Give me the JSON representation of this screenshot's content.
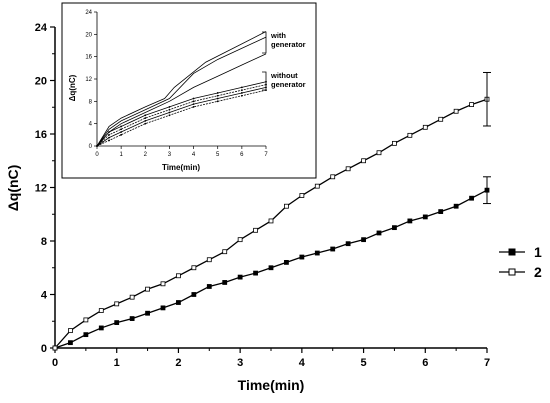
{
  "chart_data": [
    {
      "type": "line",
      "xlabel": "Time(min)",
      "ylabel": "Δq(nC)",
      "xlim": [
        0,
        7
      ],
      "ylim": [
        0,
        24
      ],
      "xticks": [
        "0",
        "1",
        "2",
        "3",
        "4",
        "5",
        "6",
        "7"
      ],
      "yticks": [
        "0",
        "4",
        "8",
        "12",
        "16",
        "20",
        "24"
      ],
      "grid": false,
      "legend_position": "right",
      "series": [
        {
          "name": "1",
          "marker": "filled-square",
          "x": [
            0,
            0.25,
            0.5,
            0.75,
            1.0,
            1.25,
            1.5,
            1.75,
            2.0,
            2.25,
            2.5,
            2.75,
            3.0,
            3.25,
            3.5,
            3.75,
            4.0,
            4.25,
            4.5,
            4.75,
            5.0,
            5.25,
            5.5,
            5.75,
            6.0,
            6.25,
            6.5,
            6.75,
            7.0
          ],
          "y": [
            0,
            0.4,
            1.0,
            1.5,
            1.9,
            2.2,
            2.6,
            3.0,
            3.4,
            4.0,
            4.6,
            4.9,
            5.3,
            5.6,
            6.0,
            6.4,
            6.8,
            7.1,
            7.4,
            7.8,
            8.1,
            8.6,
            9.0,
            9.5,
            9.8,
            10.2,
            10.6,
            11.2,
            11.8
          ],
          "error_bar_last": 1.0
        },
        {
          "name": "2",
          "marker": "open-square",
          "x": [
            0,
            0.25,
            0.5,
            0.75,
            1.0,
            1.25,
            1.5,
            1.75,
            2.0,
            2.25,
            2.5,
            2.75,
            3.0,
            3.25,
            3.5,
            3.75,
            4.0,
            4.25,
            4.5,
            4.75,
            5.0,
            5.25,
            5.5,
            5.75,
            6.0,
            6.25,
            6.5,
            6.75,
            7.0
          ],
          "y": [
            0,
            1.3,
            2.1,
            2.8,
            3.3,
            3.8,
            4.4,
            4.8,
            5.4,
            6.0,
            6.6,
            7.2,
            8.1,
            8.8,
            9.5,
            10.6,
            11.4,
            12.1,
            12.8,
            13.4,
            14.0,
            14.6,
            15.3,
            15.9,
            16.5,
            17.1,
            17.7,
            18.2,
            18.6
          ],
          "error_bar_last": 2.0
        }
      ]
    },
    {
      "type": "line",
      "role": "inset",
      "xlabel": "Time(min)",
      "ylabel": "Δq(nC)",
      "xlim": [
        0,
        7
      ],
      "ylim": [
        0,
        24
      ],
      "xticks": [
        "0",
        "1",
        "2",
        "3",
        "4",
        "5",
        "6",
        "7"
      ],
      "yticks": [
        "0",
        "4",
        "8",
        "12",
        "16",
        "20",
        "24"
      ],
      "annotations": [
        "with",
        "generator",
        "without",
        "generator"
      ],
      "groups": [
        {
          "label": "with generator",
          "series": [
            {
              "x": [
                0,
                0.5,
                1,
                2,
                2.8,
                3.2,
                4.5,
                7
              ],
              "y": [
                0,
                3.5,
                5,
                7,
                8.5,
                10.5,
                15,
                20.5
              ]
            },
            {
              "x": [
                0,
                0.5,
                1,
                2,
                3,
                4,
                5,
                7
              ],
              "y": [
                0,
                3,
                4.5,
                6.5,
                8.5,
                13,
                15.5,
                19.5
              ]
            },
            {
              "x": [
                0,
                0.5,
                1,
                2,
                3,
                4,
                5,
                6,
                7
              ],
              "y": [
                0,
                2.5,
                4,
                6,
                8,
                10.5,
                12.5,
                14.5,
                16.5
              ]
            }
          ]
        },
        {
          "label": "without generator",
          "series": [
            {
              "x": [
                0,
                0.5,
                1,
                2,
                3,
                4,
                5,
                6,
                7
              ],
              "y": [
                0,
                2.5,
                3.5,
                5.5,
                7,
                8.5,
                9.5,
                10.5,
                11.5
              ]
            },
            {
              "x": [
                0,
                0.5,
                1,
                2,
                3,
                4,
                5,
                6,
                7
              ],
              "y": [
                0,
                2,
                3,
                5,
                6.5,
                8,
                9,
                10,
                11
              ]
            },
            {
              "x": [
                0,
                0.5,
                1,
                2,
                3,
                4,
                5,
                6,
                7
              ],
              "y": [
                0,
                1.5,
                2.5,
                4.5,
                6,
                7.5,
                8.5,
                9.5,
                10.5
              ]
            },
            {
              "x": [
                0,
                0.5,
                1,
                2,
                3,
                4,
                5,
                6,
                7
              ],
              "y": [
                0,
                1,
                2,
                4,
                5.5,
                7,
                8,
                9,
                10
              ]
            }
          ]
        }
      ]
    }
  ]
}
